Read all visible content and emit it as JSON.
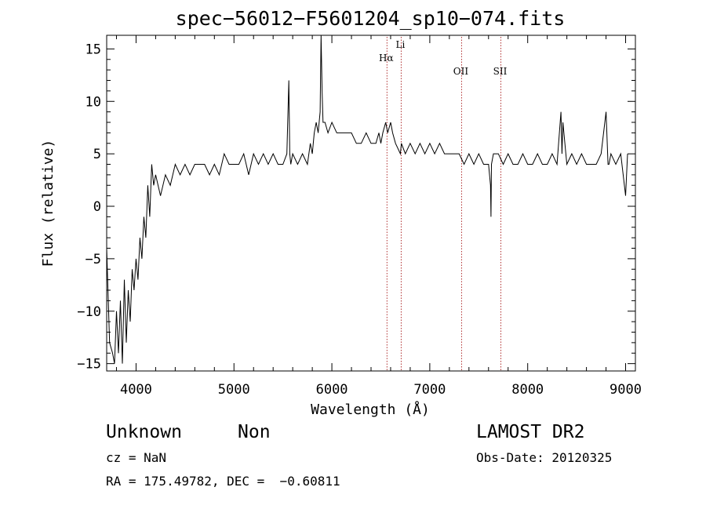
{
  "chart_data": {
    "type": "line",
    "title": "spec−56012−F5601204_sp10−074.fits",
    "xlabel": "Wavelength (Å)",
    "ylabel": "Flux (relative)",
    "xlim": [
      3700,
      9100
    ],
    "ylim": [
      -15.7,
      16.3
    ],
    "x_ticks": [
      4000,
      5000,
      6000,
      7000,
      8000,
      9000
    ],
    "y_ticks": [
      -15,
      -10,
      -5,
      0,
      5,
      10,
      15
    ],
    "y_tick_labels": [
      "−15",
      "−10",
      "−5",
      "0",
      "5",
      "10",
      "15"
    ],
    "grid": false,
    "series": [
      {
        "x": [
          3700,
          3730,
          3760,
          3780,
          3800,
          3820,
          3840,
          3860,
          3880,
          3900,
          3920,
          3940,
          3960,
          3980,
          4000,
          4020,
          4040,
          4060,
          4080,
          4100,
          4120,
          4140,
          4160,
          4180,
          4200,
          4250,
          4300,
          4350,
          4400,
          4450,
          4500,
          4550,
          4600,
          4650,
          4700,
          4750,
          4800,
          4850,
          4900,
          4950,
          5000,
          5050,
          5100,
          5150,
          5200,
          5250,
          5300,
          5350,
          5400,
          5450,
          5500,
          5540,
          5560,
          5570,
          5580,
          5600,
          5650,
          5700,
          5750,
          5780,
          5800,
          5820,
          5840,
          5860,
          5880,
          5890,
          5900,
          5910,
          5930,
          5960,
          6000,
          6050,
          6100,
          6150,
          6200,
          6250,
          6300,
          6350,
          6400,
          6450,
          6480,
          6500,
          6520,
          6550,
          6570,
          6600,
          6620,
          6650,
          6700,
          6710,
          6750,
          6800,
          6850,
          6900,
          6950,
          7000,
          7050,
          7100,
          7150,
          7200,
          7250,
          7300,
          7350,
          7400,
          7450,
          7500,
          7550,
          7600,
          7620,
          7625,
          7630,
          7650,
          7700,
          7750,
          7800,
          7850,
          7900,
          7950,
          8000,
          8050,
          8100,
          8150,
          8200,
          8250,
          8300,
          8340,
          8350,
          8360,
          8400,
          8450,
          8500,
          8550,
          8600,
          8650,
          8700,
          8750,
          8800,
          8820,
          8830,
          8850,
          8900,
          8950,
          9000,
          9020
        ],
        "y": [
          -4,
          -13,
          -14,
          -15,
          -10,
          -14,
          -9,
          -15,
          -7,
          -13,
          -8,
          -11,
          -6,
          -8,
          -5,
          -7,
          -3,
          -5,
          -1,
          -3,
          2,
          -1,
          4,
          2,
          3,
          1,
          3,
          2,
          4,
          3,
          4,
          3,
          4,
          4,
          4,
          3,
          4,
          3,
          5,
          4,
          4,
          4,
          5,
          3,
          5,
          4,
          5,
          4,
          5,
          4,
          4,
          5,
          12,
          5,
          4,
          5,
          4,
          5,
          4,
          6,
          5,
          7,
          8,
          7,
          9,
          17,
          11,
          8,
          8,
          7,
          8,
          7,
          7,
          7,
          7,
          6,
          6,
          7,
          6,
          6,
          7,
          6,
          7,
          8,
          7,
          8,
          7,
          6,
          5,
          6,
          5,
          6,
          5,
          6,
          5,
          6,
          5,
          6,
          5,
          5,
          5,
          5,
          4,
          5,
          4,
          5,
          4,
          4,
          2,
          -1,
          4,
          5,
          5,
          4,
          5,
          4,
          4,
          5,
          4,
          4,
          5,
          4,
          4,
          5,
          4,
          9,
          5,
          8,
          4,
          5,
          4,
          5,
          4,
          4,
          4,
          5,
          9,
          4,
          4,
          5,
          4,
          5,
          1,
          5
        ]
      }
    ],
    "line_markers": [
      {
        "label": "Hα",
        "x": 6563
      },
      {
        "label": "Li",
        "x": 6708
      },
      {
        "label": "OII",
        "x": 7325
      },
      {
        "label": "SII",
        "x": 7726
      }
    ]
  },
  "info": {
    "class": "Unknown",
    "subclass": "Non",
    "survey": "LAMOST DR2",
    "cz": "cz = NaN",
    "obs_date": "Obs-Date: 20120325",
    "coords": "RA = 175.49782, DEC =  −0.60811"
  },
  "colors": {
    "spectrum": "#000000",
    "marker": "#b03030"
  }
}
